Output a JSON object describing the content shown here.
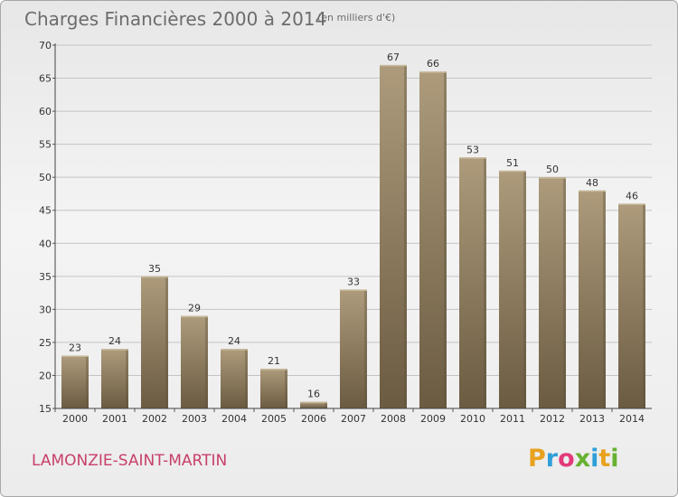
{
  "title": "Charges Financières 2000 à 2014",
  "subtitle": "(en milliers d'€)",
  "commune": "LAMONZIE-SAINT-MARTIN",
  "logo": {
    "letters": [
      "P",
      "r",
      "o",
      "x",
      "i",
      "t",
      "i"
    ],
    "colors": [
      "#e8a21f",
      "#2f9fd8",
      "#e23a7a",
      "#66b132",
      "#2f9fd8",
      "#e8a21f",
      "#66b132"
    ]
  },
  "colors": {
    "bar": "#8e7b5d",
    "bar_light": "#ab997a",
    "bar_dark": "#6b5b41",
    "grid": "#c4c4c4",
    "commune": "#c8406a"
  },
  "chart_data": {
    "type": "bar",
    "categories": [
      "2000",
      "2001",
      "2002",
      "2003",
      "2004",
      "2005",
      "2006",
      "2007",
      "2008",
      "2009",
      "2010",
      "2011",
      "2012",
      "2013",
      "2014"
    ],
    "values": [
      23,
      24,
      35,
      29,
      24,
      21,
      16,
      33,
      67,
      66,
      53,
      51,
      50,
      48,
      46
    ],
    "ylim": [
      15,
      70
    ],
    "yticks": [
      15,
      20,
      25,
      30,
      35,
      40,
      45,
      50,
      55,
      60,
      65,
      70
    ],
    "grid": true
  }
}
